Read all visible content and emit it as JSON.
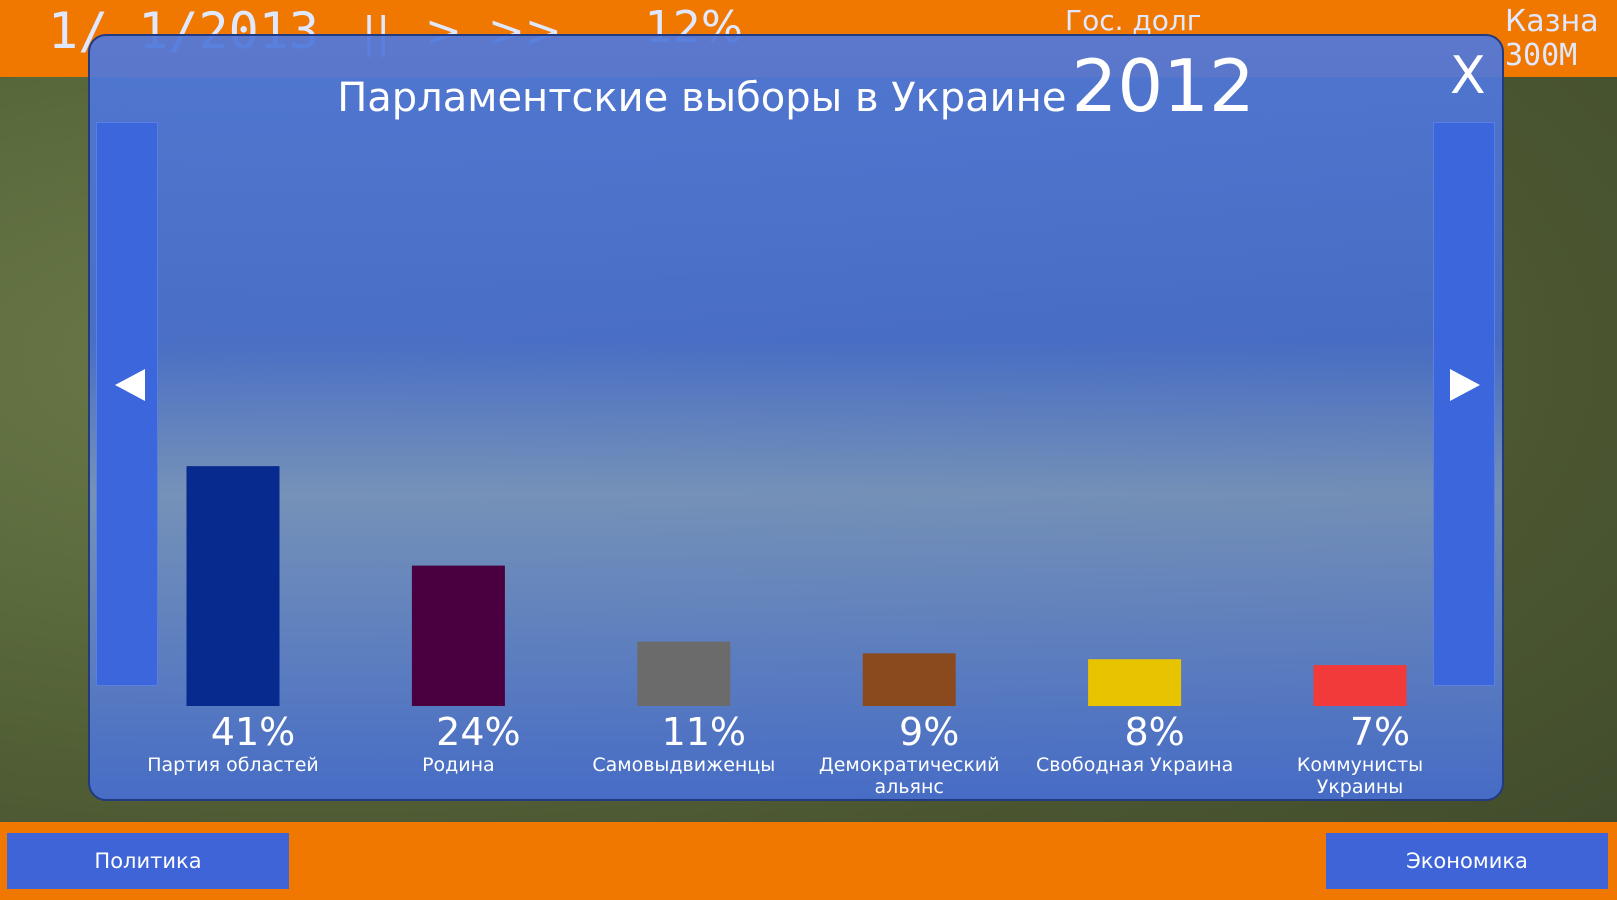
{
  "top_bar": {
    "date": "1/ 1/2013",
    "pause": "||",
    "play": ">",
    "fast": ">>",
    "rate": "12%",
    "debt_label": "Гос. долг",
    "treasury_label": "Казна",
    "treasury_value": "300M"
  },
  "dialog": {
    "close": "X"
  },
  "chart_data": {
    "type": "bar",
    "title": "Парламентские выборы в Украине",
    "year": "2012",
    "categories": [
      "Партия областей",
      "Родина",
      "Самовыдвиженцы",
      "Демократический альянс",
      "Свободная Украина",
      "Коммунисты Украины"
    ],
    "values": [
      41,
      24,
      11,
      9,
      8,
      7
    ],
    "value_labels": [
      "41%",
      "24%",
      "11%",
      "9%",
      "8%",
      "7%"
    ],
    "colors": [
      "#062a8e",
      "#4a0040",
      "#6b6b6b",
      "#8a4a1e",
      "#e8c400",
      "#f23a3a"
    ]
  },
  "bottom_bar": {
    "left_button": "Политика",
    "right_button": "Экономика"
  }
}
